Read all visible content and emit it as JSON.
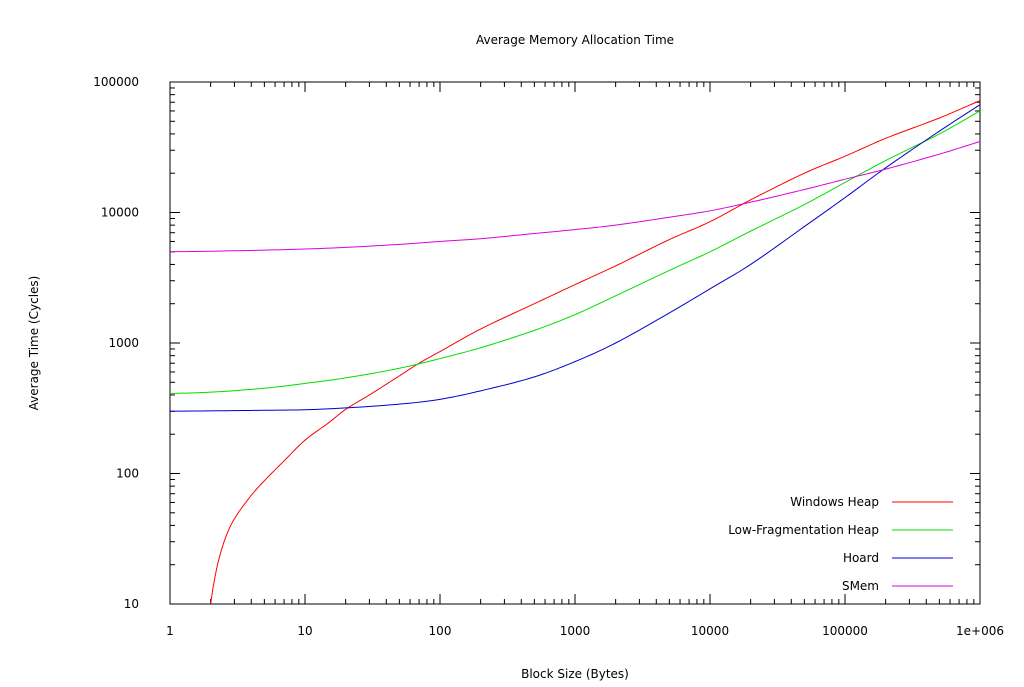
{
  "chart_data": {
    "type": "line",
    "title": "Average Memory Allocation Time",
    "xlabel": "Block Size (Bytes)",
    "ylabel": "Average Time (Cycles)",
    "x_scale": "log",
    "y_scale": "log",
    "xlim": [
      1,
      1000000
    ],
    "ylim": [
      10,
      100000
    ],
    "x_ticks": [
      1,
      10,
      100,
      1000,
      10000,
      100000,
      1000000
    ],
    "x_tick_labels": [
      "1",
      "10",
      "100",
      "1000",
      "10000",
      "100000",
      "1e+006"
    ],
    "y_ticks": [
      10,
      100,
      1000,
      10000,
      100000
    ],
    "y_tick_labels": [
      "10",
      "100",
      "1000",
      "10000",
      "100000"
    ],
    "grid": false,
    "legend_position": "bottom-right",
    "series": [
      {
        "name": "Windows Heap",
        "color": "#ff0000",
        "points": [
          [
            2,
            10
          ],
          [
            2.1,
            14
          ],
          [
            2.3,
            22
          ],
          [
            2.6,
            33
          ],
          [
            3,
            45
          ],
          [
            4,
            68
          ],
          [
            5,
            88
          ],
          [
            7,
            125
          ],
          [
            10,
            180
          ],
          [
            15,
            245
          ],
          [
            20,
            310
          ],
          [
            30,
            400
          ],
          [
            50,
            560
          ],
          [
            70,
            700
          ],
          [
            100,
            860
          ],
          [
            200,
            1280
          ],
          [
            500,
            2000
          ],
          [
            1000,
            2800
          ],
          [
            2000,
            3900
          ],
          [
            5000,
            6200
          ],
          [
            10000,
            8500
          ],
          [
            20000,
            12500
          ],
          [
            50000,
            20000
          ],
          [
            100000,
            27000
          ],
          [
            200000,
            37000
          ],
          [
            500000,
            53000
          ],
          [
            1000000,
            72000
          ]
        ]
      },
      {
        "name": "Low-Fragmentation Heap",
        "color": "#00dd00",
        "points": [
          [
            1,
            410
          ],
          [
            2,
            420
          ],
          [
            5,
            450
          ],
          [
            10,
            490
          ],
          [
            20,
            540
          ],
          [
            50,
            640
          ],
          [
            100,
            760
          ],
          [
            200,
            920
          ],
          [
            500,
            1250
          ],
          [
            1000,
            1650
          ],
          [
            2000,
            2300
          ],
          [
            5000,
            3600
          ],
          [
            10000,
            5000
          ],
          [
            20000,
            7200
          ],
          [
            50000,
            11500
          ],
          [
            100000,
            17000
          ],
          [
            200000,
            25000
          ],
          [
            500000,
            40000
          ],
          [
            1000000,
            60000
          ]
        ]
      },
      {
        "name": "Hoard",
        "color": "#0000cc",
        "points": [
          [
            1,
            300
          ],
          [
            2,
            302
          ],
          [
            5,
            305
          ],
          [
            10,
            308
          ],
          [
            20,
            318
          ],
          [
            50,
            340
          ],
          [
            100,
            370
          ],
          [
            200,
            430
          ],
          [
            500,
            550
          ],
          [
            1000,
            720
          ],
          [
            2000,
            1000
          ],
          [
            5000,
            1700
          ],
          [
            10000,
            2600
          ],
          [
            20000,
            4000
          ],
          [
            50000,
            7800
          ],
          [
            100000,
            13000
          ],
          [
            200000,
            22000
          ],
          [
            500000,
            42000
          ],
          [
            1000000,
            67000
          ]
        ]
      },
      {
        "name": "SMem",
        "color": "#dd00dd",
        "points": [
          [
            1,
            5000
          ],
          [
            2,
            5050
          ],
          [
            5,
            5150
          ],
          [
            10,
            5250
          ],
          [
            20,
            5400
          ],
          [
            50,
            5700
          ],
          [
            100,
            6000
          ],
          [
            200,
            6300
          ],
          [
            500,
            6900
          ],
          [
            1000,
            7400
          ],
          [
            2000,
            8000
          ],
          [
            5000,
            9200
          ],
          [
            10000,
            10300
          ],
          [
            20000,
            12000
          ],
          [
            50000,
            15000
          ],
          [
            100000,
            18000
          ],
          [
            200000,
            21500
          ],
          [
            500000,
            28000
          ],
          [
            1000000,
            35000
          ]
        ]
      }
    ]
  }
}
